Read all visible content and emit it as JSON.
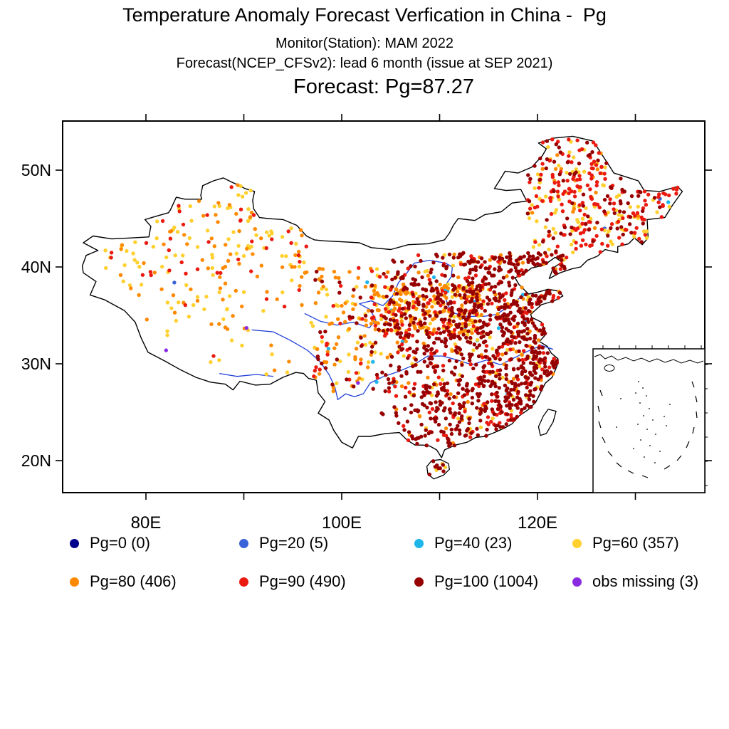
{
  "chart_data": {
    "type": "scatter",
    "title": "Temperature Anomaly Forecast Verfication in China -  Pg",
    "subtitle_monitor": "Monitor(Station): MAM 2022",
    "subtitle_forecast": "Forecast(NCEP_CFSv2): lead 6 month (issue at SEP 2021)",
    "score_title": "Forecast: Pg=87.27",
    "forecast_pg": 87.27,
    "x_axis": {
      "ticks": [
        {
          "lon": 80,
          "label": "80E"
        },
        {
          "lon": 90,
          "label": ""
        },
        {
          "lon": 100,
          "label": "100E"
        },
        {
          "lon": 110,
          "label": ""
        },
        {
          "lon": 120,
          "label": "120E"
        },
        {
          "lon": 130,
          "label": ""
        }
      ]
    },
    "y_axis": {
      "ticks": [
        {
          "lat": 50,
          "label": "50N"
        },
        {
          "lat": 40,
          "label": "40N"
        },
        {
          "lat": 30,
          "label": "30N"
        },
        {
          "lat": 20,
          "label": "20N"
        }
      ]
    },
    "categories": [
      {
        "name": "Pg=0",
        "label": "Pg=0 (0)",
        "count": 0,
        "color": "#00008B"
      },
      {
        "name": "Pg=20",
        "label": "Pg=20 (5)",
        "count": 5,
        "color": "#3A62D9"
      },
      {
        "name": "Pg=40",
        "label": "Pg=40 (23)",
        "count": 23,
        "color": "#1FB6EA"
      },
      {
        "name": "Pg=60",
        "label": "Pg=60 (357)",
        "count": 357,
        "color": "#FFD02E"
      },
      {
        "name": "Pg=80",
        "label": "Pg=80 (406)",
        "count": 406,
        "color": "#FF8A00"
      },
      {
        "name": "Pg=90",
        "label": "Pg=90 (490)",
        "count": 490,
        "color": "#EB1A10"
      },
      {
        "name": "Pg=100",
        "label": "Pg=100 (1004)",
        "count": 1004,
        "color": "#970000"
      },
      {
        "name": "obs missing",
        "label": "obs missing (3)",
        "count": 3,
        "color": "#8A2BE2"
      }
    ],
    "legend_position": "bottom",
    "region_shown": "China"
  }
}
